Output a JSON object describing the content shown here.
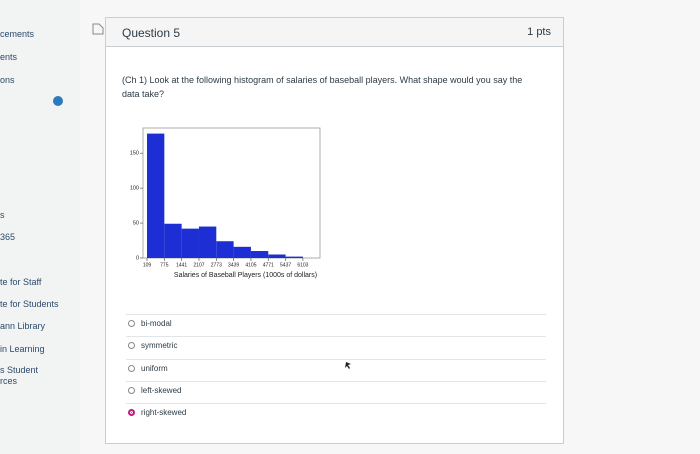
{
  "sidebar": {
    "items": [
      "cements",
      "ents",
      "ons",
      "s",
      "365",
      "te for Staff",
      "te for Students",
      "ann Library",
      "in Learning",
      "s Student",
      "rces"
    ]
  },
  "question": {
    "title": "Question 5",
    "points": "1 pts",
    "text": "(Ch 1) Look at the following histogram of salaries of baseball players. What shape would you say the data take?",
    "chart": {
      "type": "histogram",
      "xlabel": "Salaries of Baseball Players (1000s of dollars)",
      "bins": [
        109,
        775,
        1441,
        2107,
        2773,
        3439,
        4105,
        4771,
        5437,
        6103
      ],
      "counts": [
        178,
        49,
        42,
        45,
        24,
        16,
        10,
        5,
        2
      ],
      "color": "#1d2fd4",
      "xlim": [
        -45,
        6760
      ],
      "ylim": [
        0,
        186
      ],
      "xticks": [
        109,
        775,
        1441,
        2107,
        2773,
        3439,
        4105,
        4771,
        5437,
        6103
      ],
      "yticks": [
        0,
        50,
        100,
        150
      ]
    },
    "options": [
      "bi-modal",
      "symmetric",
      "uniform",
      "left-skewed",
      "right-skewed"
    ],
    "selected": 4
  }
}
